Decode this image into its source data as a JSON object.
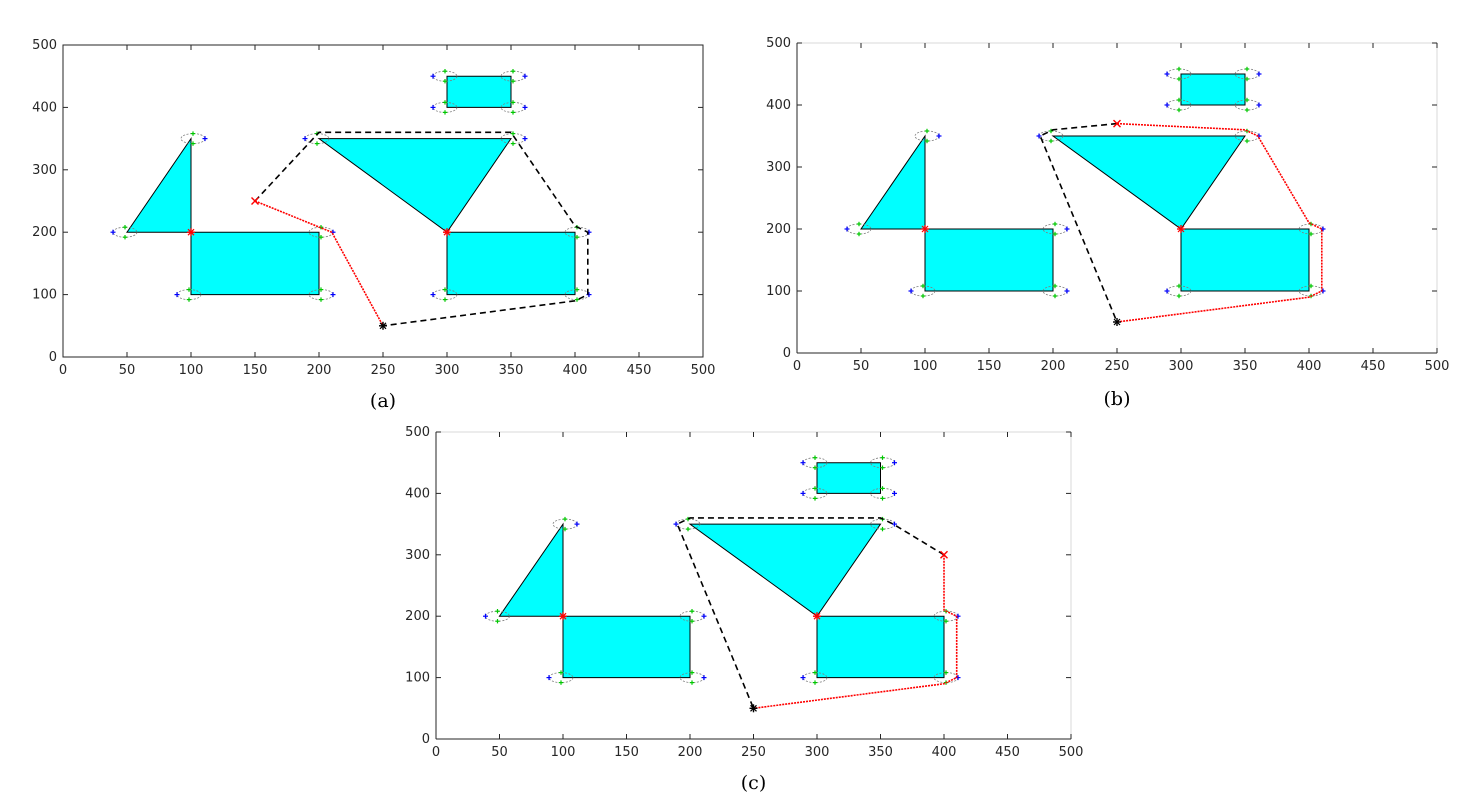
{
  "colors": {
    "obstacle_fill": "#00ffff",
    "obstacle_stroke": "#000000",
    "path_dashed": "#000000",
    "path_red": "#ff0000",
    "corner_marker": "#ff0000",
    "ellipse": "#7f7f7f",
    "point_blue": "#0000ff",
    "point_green": "#00c800"
  },
  "chart_data": [
    {
      "type": "scatter",
      "panel_label": "(a)",
      "xlim": [
        0,
        500
      ],
      "ylim": [
        0,
        500
      ],
      "xticks": [
        "0",
        "50",
        "100",
        "150",
        "200",
        "250",
        "300",
        "350",
        "400",
        "450",
        "500"
      ],
      "yticks": [
        "0",
        "100",
        "200",
        "300",
        "400",
        "500"
      ],
      "grid": false,
      "obstacles": [
        {
          "shape": "polygon",
          "points": [
            [
              50,
              200
            ],
            [
              100,
              350
            ],
            [
              100,
              200
            ]
          ]
        },
        {
          "shape": "polygon",
          "points": [
            [
              100,
              100
            ],
            [
              200,
              100
            ],
            [
              200,
              200
            ],
            [
              100,
              200
            ]
          ]
        },
        {
          "shape": "polygon",
          "points": [
            [
              200,
              350
            ],
            [
              350,
              350
            ],
            [
              300,
              200
            ]
          ]
        },
        {
          "shape": "polygon",
          "points": [
            [
              300,
              100
            ],
            [
              400,
              100
            ],
            [
              400,
              200
            ],
            [
              300,
              200
            ]
          ]
        },
        {
          "shape": "polygon",
          "points": [
            [
              300,
              400
            ],
            [
              350,
              400
            ],
            [
              350,
              450
            ],
            [
              300,
              450
            ]
          ]
        }
      ],
      "corner_markers": [
        [
          100,
          200
        ],
        [
          300,
          200
        ]
      ],
      "dashed_path": [
        [
          150,
          250
        ],
        [
          200,
          360
        ],
        [
          350,
          360
        ],
        [
          400,
          210
        ],
        [
          410,
          200
        ],
        [
          410,
          100
        ],
        [
          400,
          90
        ],
        [
          250,
          50
        ]
      ],
      "red_path": [
        [
          150,
          250
        ],
        [
          210,
          200
        ],
        [
          250,
          50
        ]
      ],
      "start": [
        250,
        50
      ],
      "goal": [
        150,
        250
      ]
    },
    {
      "type": "scatter",
      "panel_label": "(b)",
      "xlim": [
        0,
        500
      ],
      "ylim": [
        0,
        500
      ],
      "xticks": [
        "0",
        "50",
        "100",
        "150",
        "200",
        "250",
        "300",
        "350",
        "400",
        "450",
        "500"
      ],
      "yticks": [
        "0",
        "100",
        "200",
        "300",
        "400",
        "500"
      ],
      "grid": false,
      "obstacles": [
        {
          "shape": "polygon",
          "points": [
            [
              50,
              200
            ],
            [
              100,
              350
            ],
            [
              100,
              200
            ]
          ]
        },
        {
          "shape": "polygon",
          "points": [
            [
              100,
              100
            ],
            [
              200,
              100
            ],
            [
              200,
              200
            ],
            [
              100,
              200
            ]
          ]
        },
        {
          "shape": "polygon",
          "points": [
            [
              200,
              350
            ],
            [
              350,
              350
            ],
            [
              300,
              200
            ]
          ]
        },
        {
          "shape": "polygon",
          "points": [
            [
              300,
              100
            ],
            [
              400,
              100
            ],
            [
              400,
              200
            ],
            [
              300,
              200
            ]
          ]
        },
        {
          "shape": "polygon",
          "points": [
            [
              300,
              400
            ],
            [
              350,
              400
            ],
            [
              350,
              450
            ],
            [
              300,
              450
            ]
          ]
        }
      ],
      "corner_markers": [
        [
          100,
          200
        ],
        [
          300,
          200
        ]
      ],
      "dashed_path": [
        [
          250,
          370
        ],
        [
          200,
          360
        ],
        [
          190,
          350
        ],
        [
          250,
          50
        ]
      ],
      "red_path": [
        [
          250,
          370
        ],
        [
          350,
          360
        ],
        [
          360,
          350
        ],
        [
          400,
          210
        ],
        [
          410,
          200
        ],
        [
          410,
          100
        ],
        [
          400,
          90
        ],
        [
          250,
          50
        ]
      ],
      "start": [
        250,
        50
      ],
      "goal": [
        250,
        370
      ]
    },
    {
      "type": "scatter",
      "panel_label": "(c)",
      "xlim": [
        0,
        500
      ],
      "ylim": [
        0,
        500
      ],
      "xticks": [
        "0",
        "50",
        "100",
        "150",
        "200",
        "250",
        "300",
        "350",
        "400",
        "450",
        "500"
      ],
      "yticks": [
        "0",
        "100",
        "200",
        "300",
        "400",
        "500"
      ],
      "grid": false,
      "obstacles": [
        {
          "shape": "polygon",
          "points": [
            [
              50,
              200
            ],
            [
              100,
              350
            ],
            [
              100,
              200
            ]
          ]
        },
        {
          "shape": "polygon",
          "points": [
            [
              100,
              100
            ],
            [
              200,
              100
            ],
            [
              200,
              200
            ],
            [
              100,
              200
            ]
          ]
        },
        {
          "shape": "polygon",
          "points": [
            [
              200,
              350
            ],
            [
              350,
              350
            ],
            [
              300,
              200
            ]
          ]
        },
        {
          "shape": "polygon",
          "points": [
            [
              300,
              100
            ],
            [
              400,
              100
            ],
            [
              400,
              200
            ],
            [
              300,
              200
            ]
          ]
        },
        {
          "shape": "polygon",
          "points": [
            [
              300,
              400
            ],
            [
              350,
              400
            ],
            [
              350,
              450
            ],
            [
              300,
              450
            ]
          ]
        }
      ],
      "corner_markers": [
        [
          100,
          200
        ],
        [
          300,
          200
        ]
      ],
      "dashed_path": [
        [
          400,
          300
        ],
        [
          360,
          350
        ],
        [
          350,
          360
        ],
        [
          200,
          360
        ],
        [
          190,
          350
        ],
        [
          250,
          50
        ]
      ],
      "red_path": [
        [
          400,
          300
        ],
        [
          400,
          210
        ],
        [
          410,
          200
        ],
        [
          410,
          100
        ],
        [
          400,
          90
        ],
        [
          250,
          50
        ]
      ],
      "start": [
        250,
        50
      ],
      "goal": [
        400,
        300
      ]
    }
  ]
}
